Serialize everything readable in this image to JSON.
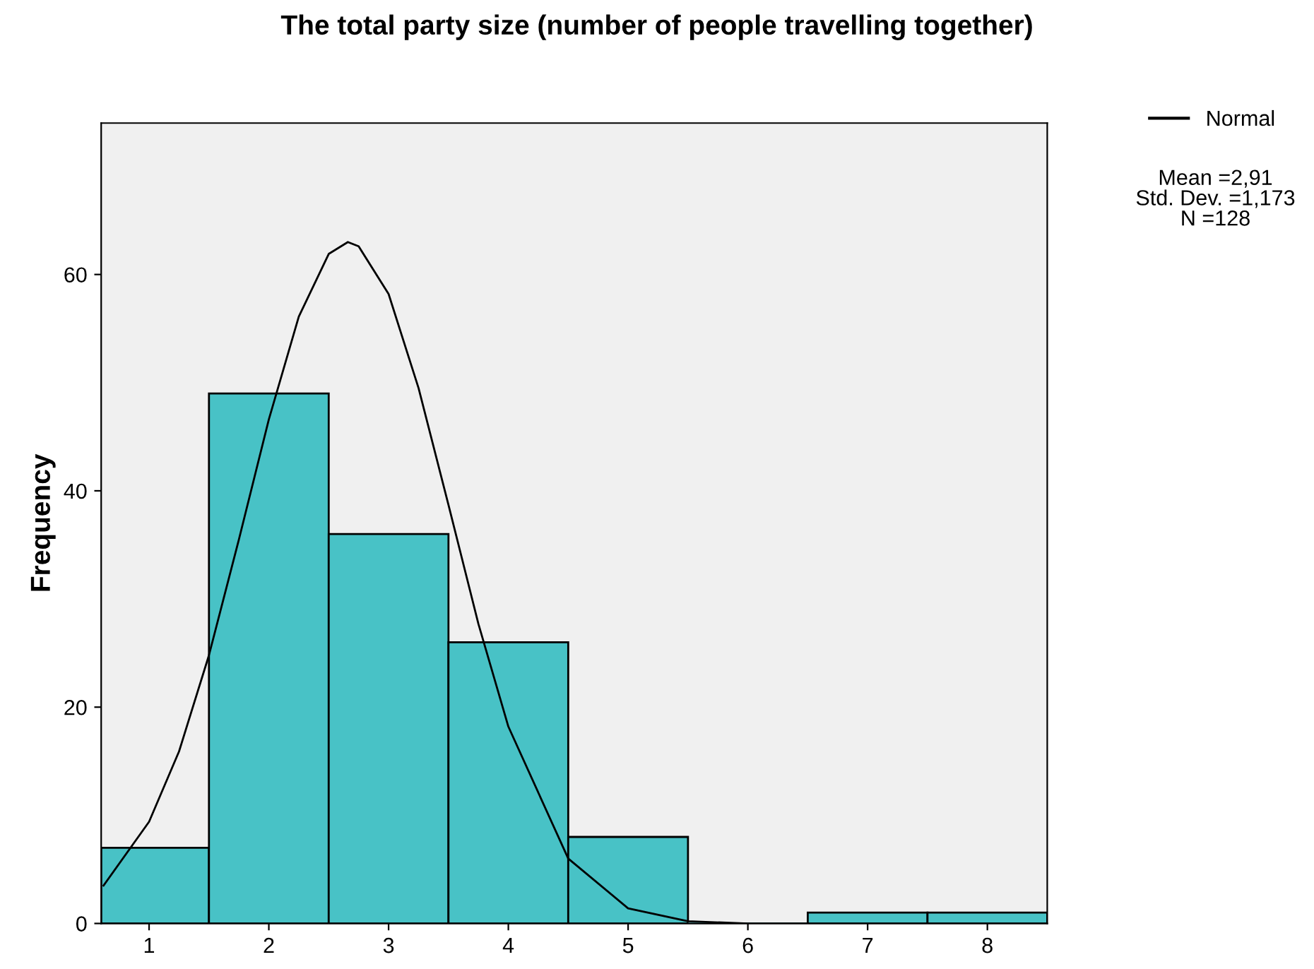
{
  "chart_data": {
    "type": "histogram",
    "title": "The total party size (number of people travelling together)",
    "ylabel": "Frequency",
    "bins": [
      0.6,
      1.5,
      2.5,
      3.5,
      4.5,
      5.5,
      6.5,
      7.5,
      8.5
    ],
    "series": [
      {
        "type": "histogram",
        "color": "#48c2c6",
        "values": [
          7,
          49,
          36,
          26,
          8,
          0,
          1,
          1
        ]
      },
      {
        "type": "line",
        "name": "Normal",
        "color": "#000000",
        "x": [
          0.62,
          1,
          1.25,
          1.5,
          1.75,
          2,
          2.25,
          2.5,
          2.66,
          2.75,
          3,
          3.25,
          3.5,
          3.75,
          4,
          4.5,
          5,
          5.5,
          6,
          6.5
        ],
        "values": [
          3.5,
          9.4,
          15.9,
          24.8,
          35.5,
          46.6,
          56.1,
          61.9,
          63,
          62.6,
          58.2,
          49.5,
          38.7,
          27.7,
          18.2,
          6.0,
          1.4,
          0.2,
          0,
          0
        ]
      }
    ],
    "xlim": [
      0.6,
      8.5
    ],
    "ylim": [
      0,
      74
    ],
    "xticks": [
      1,
      2,
      3,
      4,
      5,
      6,
      7,
      8
    ],
    "yticks": [
      0,
      20,
      40,
      60
    ],
    "grid": false,
    "legend": "right",
    "marker": "none",
    "line_style": "solid",
    "annotations": [
      "Mean =2,91",
      "Std. Dev. =1,173",
      "N =128"
    ]
  }
}
